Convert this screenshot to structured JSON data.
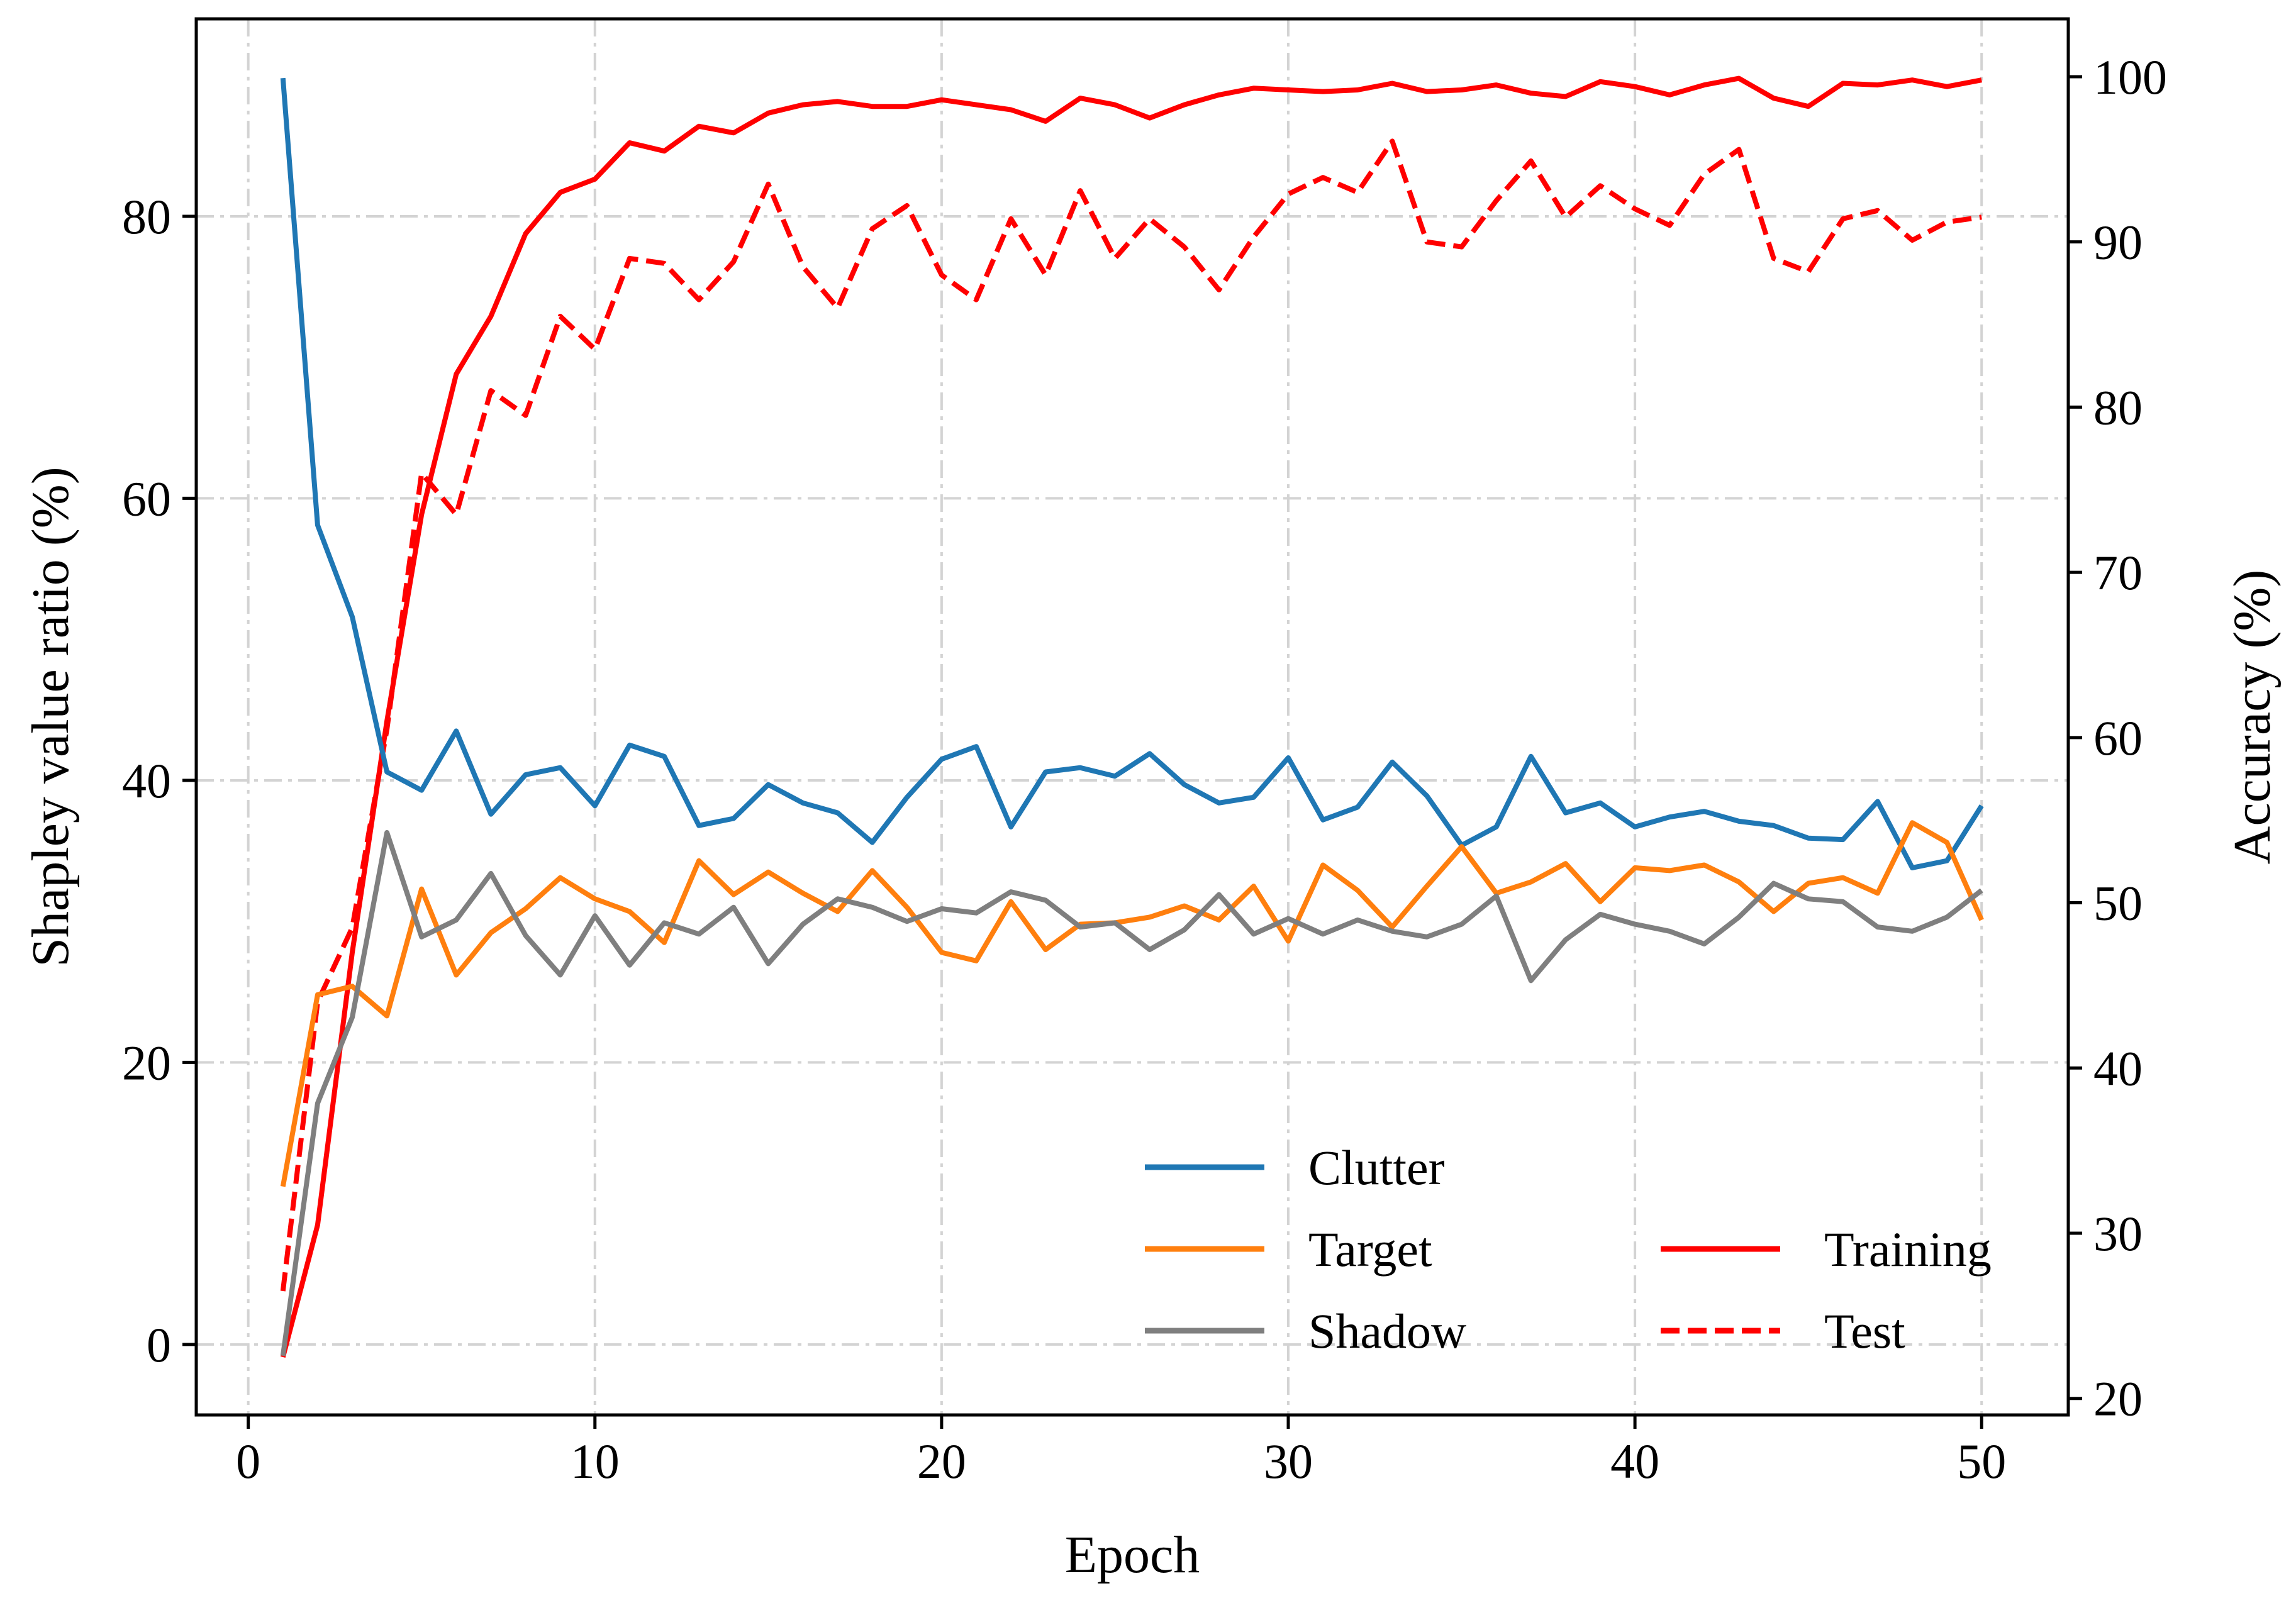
{
  "chart_data": {
    "type": "line",
    "xlabel": "Epoch",
    "ylabel_left": "Shapley value ratio (%)",
    "ylabel_right": "Accuracy (%)",
    "xlim": [
      -1.5,
      52.5
    ],
    "ylim_left": [
      -5,
      94
    ],
    "ylim_right": [
      19,
      103.5
    ],
    "xticks": [
      0,
      10,
      20,
      30,
      40,
      50
    ],
    "yticks_left": [
      0,
      20,
      40,
      60,
      80
    ],
    "yticks_right": [
      20,
      30,
      40,
      50,
      60,
      70,
      80,
      90,
      100
    ],
    "grid": true,
    "legend_left": {
      "placement": "lower-center",
      "entries": [
        "Clutter",
        "Target",
        "Shadow"
      ]
    },
    "legend_right": {
      "placement": "lower-right",
      "entries": [
        "Training",
        "Test"
      ]
    },
    "x": [
      1,
      2,
      3,
      4,
      5,
      6,
      7,
      8,
      9,
      10,
      11,
      12,
      13,
      14,
      15,
      16,
      17,
      18,
      19,
      20,
      21,
      22,
      23,
      24,
      25,
      26,
      27,
      28,
      29,
      30,
      31,
      32,
      33,
      34,
      35,
      36,
      37,
      38,
      39,
      40,
      41,
      42,
      43,
      44,
      45,
      46,
      47,
      48,
      49,
      50
    ],
    "series": [
      {
        "name": "Clutter",
        "axis": "left",
        "color": "#1f77b4",
        "style": "solid",
        "values": [
          89.8,
          58.1,
          51.6,
          40.6,
          39.3,
          43.5,
          37.6,
          40.4,
          40.9,
          38.2,
          42.5,
          41.7,
          36.8,
          37.3,
          39.7,
          38.4,
          37.7,
          35.6,
          38.8,
          41.5,
          42.4,
          36.7,
          40.6,
          40.9,
          40.3,
          41.9,
          39.7,
          38.4,
          38.8,
          41.6,
          37.2,
          38.1,
          41.3,
          38.9,
          35.4,
          36.7,
          41.7,
          37.7,
          38.4,
          36.7,
          37.4,
          37.8,
          37.1,
          36.8,
          35.9,
          35.8,
          38.5,
          33.8,
          34.3,
          38.2
        ]
      },
      {
        "name": "Target",
        "axis": "left",
        "color": "#ff7f0e",
        "style": "solid",
        "values": [
          11.2,
          24.8,
          25.4,
          23.3,
          32.3,
          26.2,
          29.2,
          30.9,
          33.1,
          31.6,
          30.7,
          28.5,
          34.3,
          31.9,
          33.5,
          32.0,
          30.7,
          33.6,
          31.0,
          27.8,
          27.2,
          31.4,
          28.0,
          29.8,
          29.9,
          30.3,
          31.1,
          30.1,
          32.5,
          28.6,
          34.0,
          32.2,
          29.6,
          32.5,
          35.3,
          32.0,
          32.8,
          34.1,
          31.4,
          33.8,
          33.6,
          34.0,
          32.8,
          30.7,
          32.7,
          33.1,
          32.0,
          37.0,
          35.6,
          30.1
        ]
      },
      {
        "name": "Shadow",
        "axis": "left",
        "color": "#7f7f7f",
        "style": "solid",
        "values": [
          -0.8,
          17.1,
          23.2,
          36.3,
          28.9,
          30.1,
          33.4,
          29.0,
          26.2,
          30.4,
          26.9,
          29.9,
          29.1,
          31.0,
          27.0,
          29.8,
          31.6,
          31.0,
          30.0,
          30.9,
          30.6,
          32.1,
          31.5,
          29.6,
          29.9,
          28.0,
          29.4,
          31.9,
          29.1,
          30.2,
          29.1,
          30.1,
          29.3,
          28.9,
          29.8,
          31.8,
          25.8,
          28.7,
          30.5,
          29.8,
          29.3,
          28.4,
          30.3,
          32.7,
          31.6,
          31.4,
          29.6,
          29.3,
          30.3,
          32.2
        ]
      },
      {
        "name": "Training",
        "axis": "right",
        "color": "#ff0000",
        "style": "solid",
        "values": [
          22.5,
          30.5,
          47.0,
          61.0,
          73.5,
          82.0,
          85.5,
          90.5,
          93.0,
          93.8,
          96.0,
          95.5,
          97.0,
          96.6,
          97.8,
          98.3,
          98.5,
          98.2,
          98.2,
          98.6,
          98.3,
          98.0,
          97.3,
          98.7,
          98.3,
          97.5,
          98.3,
          98.9,
          99.3,
          99.2,
          99.1,
          99.2,
          99.6,
          99.1,
          99.2,
          99.5,
          99.0,
          98.8,
          99.7,
          99.4,
          98.9,
          99.5,
          99.9,
          98.7,
          98.2,
          99.6,
          99.5,
          99.8,
          99.4,
          99.8
        ]
      },
      {
        "name": "Test",
        "axis": "right",
        "color": "#ff0000",
        "style": "dashed",
        "values": [
          26.5,
          44.0,
          48.5,
          60.5,
          76.0,
          73.5,
          81.0,
          79.5,
          85.5,
          83.5,
          89.0,
          88.7,
          86.5,
          88.8,
          93.5,
          88.5,
          86.0,
          90.8,
          92.2,
          88.0,
          86.5,
          91.4,
          88.0,
          93.1,
          89.0,
          91.4,
          89.7,
          87.1,
          90.3,
          92.9,
          93.9,
          93.0,
          96.1,
          90.0,
          89.7,
          92.5,
          94.9,
          91.5,
          93.4,
          92.0,
          91.0,
          94.1,
          95.6,
          89.0,
          88.2,
          91.4,
          91.9,
          90.1,
          91.2,
          91.5
        ]
      }
    ]
  }
}
